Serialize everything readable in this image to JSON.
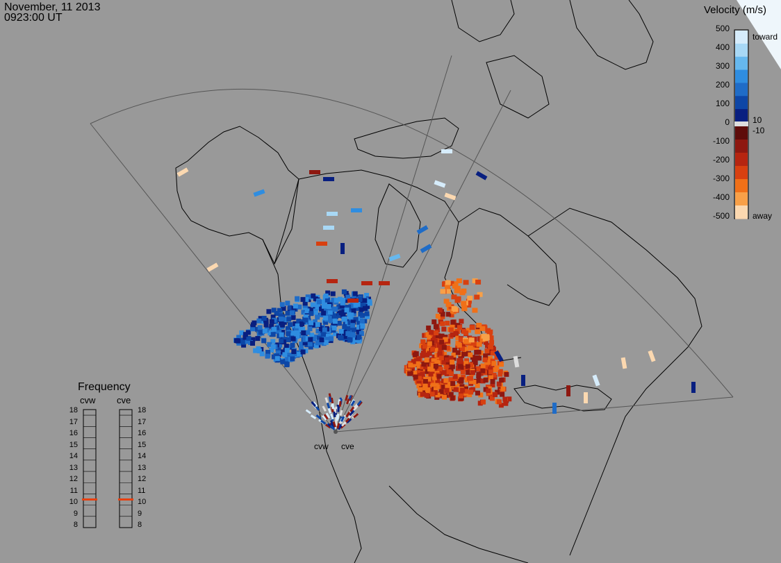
{
  "header": {
    "date": "November, 11 2013",
    "time": "0923:00 UT"
  },
  "colorbar": {
    "title": "Velocity (m/s)",
    "ticks": [
      "500",
      "400",
      "300",
      "200",
      "100",
      "0",
      "-100",
      "-200",
      "-300",
      "-400",
      "-500"
    ],
    "side_labels": {
      "toward": "toward",
      "plus10": "10",
      "minus10": "-10",
      "away": "away"
    },
    "colors_toward": [
      "#d6ecfb",
      "#a8d8f5",
      "#66b8ee",
      "#2f8de0",
      "#1f6cc7",
      "#0d46a6",
      "#081f80"
    ],
    "colors_away": [
      "#5e0c0a",
      "#8e1810",
      "#b62510",
      "#d84010",
      "#f07018",
      "#f8a048",
      "#fbd8b0"
    ]
  },
  "frequency": {
    "title": "Frequency",
    "radars": [
      "cvw",
      "cve"
    ],
    "levels": [
      "18",
      "17",
      "16",
      "15",
      "14",
      "13",
      "12",
      "11",
      "10",
      "9",
      "8"
    ],
    "current_mhz": [
      10.5,
      10.5
    ],
    "indicator_color": "#e84010"
  },
  "radars": {
    "labels": [
      "cvw",
      "cve"
    ]
  },
  "map": {
    "background": "#999999",
    "line_color": "#000000",
    "fov_color": "#555555"
  }
}
